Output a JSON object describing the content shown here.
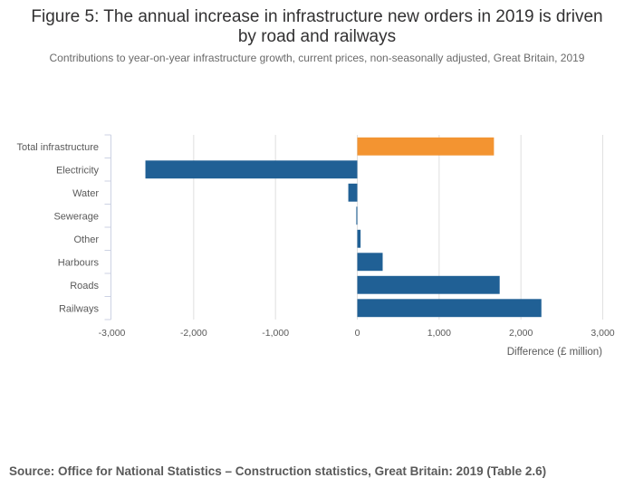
{
  "title_line1": "Figure 5: The annual increase in infrastructure new orders in 2019 is driven",
  "title_line2": "by road and railways",
  "subtitle": "Contributions to year-on-year infrastructure growth, current prices, non-seasonally adjusted, Great Britain, 2019",
  "source": "Source: Office for National Statistics – Construction statistics, Great Britain: 2019 (Table 2.6)",
  "colors": {
    "total": "#f39431",
    "component": "#206095",
    "grid": "#e0e0e0",
    "axis": "#ccd2e3"
  },
  "chart_data": {
    "type": "bar",
    "orientation": "horizontal",
    "title": "Figure 5: The annual increase in infrastructure new orders in 2019 is driven by road and railways",
    "subtitle": "Contributions to year-on-year infrastructure growth, current prices, non-seasonally adjusted, Great Britain, 2019",
    "categories": [
      "Total infrastructure",
      "Electricity",
      "Water",
      "Sewerage",
      "Other",
      "Harbours",
      "Roads",
      "Railways"
    ],
    "values": [
      1670,
      -2590,
      -110,
      -12,
      40,
      310,
      1740,
      2250
    ],
    "highlight": [
      "Total infrastructure"
    ],
    "xlabel": "Difference (£ million)",
    "ylabel": "",
    "xlim": [
      -3000,
      3000
    ],
    "xticks": [
      -3000,
      -2000,
      -1000,
      0,
      1000,
      2000,
      3000
    ],
    "xtick_labels": [
      "-3,000",
      "-2,000",
      "-1,000",
      "0",
      "1,000",
      "2,000",
      "3,000"
    ],
    "grid": true,
    "legend": "none"
  }
}
